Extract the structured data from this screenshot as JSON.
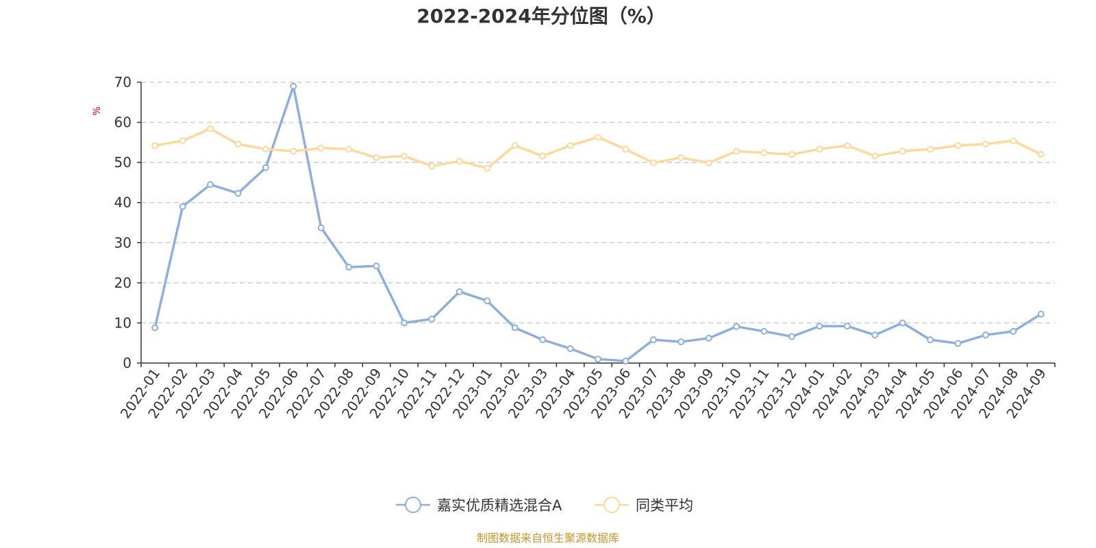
{
  "chart_data": {
    "type": "line",
    "title": "2022-2024年分位图（%）",
    "ylabel": "%",
    "ylim": [
      0,
      70
    ],
    "yticks": [
      0,
      10,
      20,
      30,
      40,
      50,
      60,
      70
    ],
    "grid": true,
    "legend_position": "bottom-center",
    "categories": [
      "2022-01",
      "2022-02",
      "2022-03",
      "2022-04",
      "2022-05",
      "2022-06",
      "2022-07",
      "2022-08",
      "2022-09",
      "2022-10",
      "2022-11",
      "2022-12",
      "2023-01",
      "2023-02",
      "2023-03",
      "2023-04",
      "2023-05",
      "2023-06",
      "2023-07",
      "2023-08",
      "2023-09",
      "2023-10",
      "2023-11",
      "2023-12",
      "2024-01",
      "2024-02",
      "2024-03",
      "2024-04",
      "2024-05",
      "2024-06",
      "2024-07",
      "2024-08",
      "2024-09"
    ],
    "series": [
      {
        "name": "嘉实优质精选混合A",
        "color": "#8eaedb",
        "values": [
          8.8,
          39.0,
          44.5,
          42.3,
          48.7,
          69.0,
          33.7,
          23.9,
          24.2,
          10.0,
          11.0,
          17.8,
          15.5,
          8.8,
          5.8,
          3.6,
          1.0,
          0.5,
          5.8,
          5.3,
          6.2,
          9.1,
          7.9,
          6.6,
          9.2,
          9.2,
          7.0,
          10.0,
          5.8,
          4.9,
          7.0,
          7.9,
          12.2
        ]
      },
      {
        "name": "同类平均",
        "color": "#fcd89a",
        "values": [
          54.2,
          55.4,
          58.4,
          54.6,
          53.3,
          52.8,
          53.6,
          53.3,
          51.2,
          51.6,
          49.1,
          50.3,
          48.6,
          54.2,
          51.6,
          54.2,
          56.3,
          53.3,
          49.9,
          51.2,
          49.9,
          52.8,
          52.4,
          52.0,
          53.3,
          54.2,
          51.6,
          52.8,
          53.3,
          54.2,
          54.6,
          55.4,
          52.0
        ]
      }
    ]
  },
  "source_note": "制图数据来自恒生聚源数据库"
}
